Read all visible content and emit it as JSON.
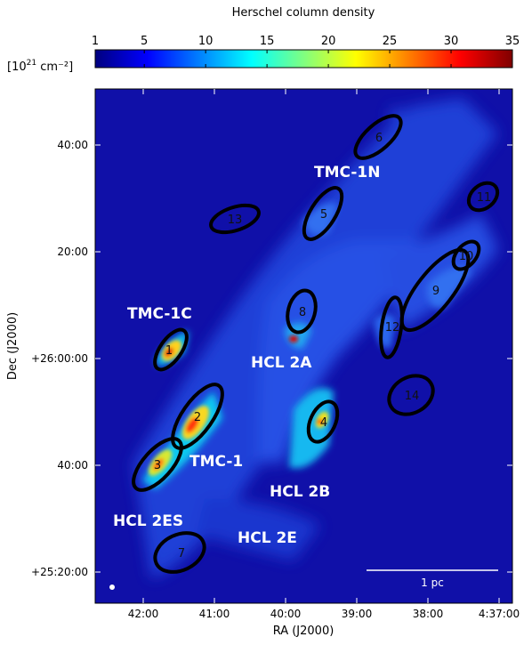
{
  "chart_data": {
    "type": "heatmap",
    "colorbar": {
      "title": "Herschel column density",
      "unit_label_prefix": "[10",
      "unit_label_exponent": "21",
      "unit_label_suffix": " cm⁻²]",
      "range": [
        1,
        35
      ],
      "ticks": [
        1,
        5,
        10,
        15,
        20,
        25,
        30,
        35
      ],
      "tick_labels": [
        "1",
        "5",
        "10",
        "15",
        "20",
        "25",
        "30",
        "35"
      ],
      "colormap": [
        "#00007f",
        "#0000ff",
        "#0080ff",
        "#00ffff",
        "#80ff80",
        "#ffff00",
        "#ff8000",
        "#ff0000",
        "#7f0000"
      ]
    },
    "xaxis": {
      "label": "RA (J2000)",
      "ticks": [
        "42:00",
        "41:00",
        "40:00",
        "39:00",
        "38:00",
        "4:37:00"
      ]
    },
    "yaxis": {
      "label": "Dec (J2000)",
      "ticks": [
        "40:00",
        "20:00",
        "+26:00:00",
        "40:00",
        "+25:20:00"
      ]
    },
    "regions": [
      {
        "name": "TMC-1N"
      },
      {
        "name": "TMC-1C"
      },
      {
        "name": "HCL 2A"
      },
      {
        "name": "TMC-1"
      },
      {
        "name": "HCL 2B"
      },
      {
        "name": "HCL 2ES"
      },
      {
        "name": "HCL 2E"
      }
    ],
    "clumps": [
      "1",
      "2",
      "3",
      "4",
      "5",
      "6",
      "7",
      "8",
      "9",
      "10",
      "11",
      "12",
      "13",
      "14"
    ],
    "scalebar_label": "1 pc",
    "background_color": "#1010a8",
    "grid": false
  }
}
